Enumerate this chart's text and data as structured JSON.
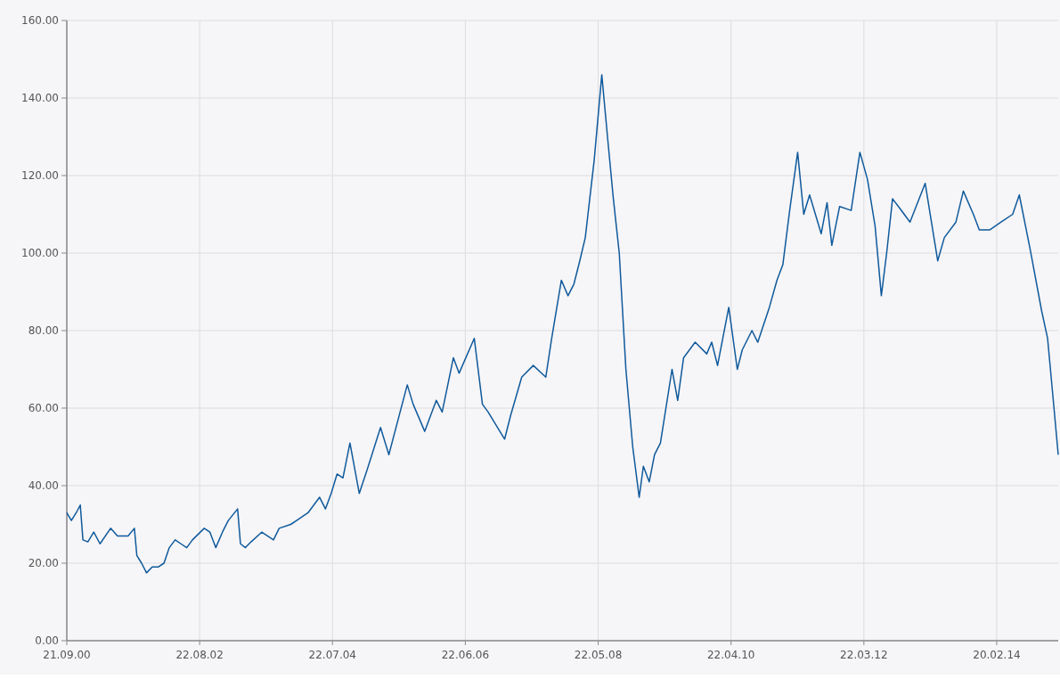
{
  "chart_data": {
    "type": "line",
    "x": [
      "2000-09-21",
      "2000-10-15",
      "2000-11-15",
      "2000-12-01",
      "2000-12-15",
      "2001-01-10",
      "2001-02-10",
      "2001-03-15",
      "2001-05-10",
      "2001-06-15",
      "2001-08-10",
      "2001-09-12",
      "2001-09-25",
      "2001-10-20",
      "2001-11-15",
      "2001-12-15",
      "2002-01-15",
      "2002-02-15",
      "2002-03-15",
      "2002-04-15",
      "2002-05-15",
      "2002-06-15",
      "2002-07-15",
      "2002-09-15",
      "2002-10-15",
      "2002-11-15",
      "2002-12-20",
      "2003-01-20",
      "2003-03-10",
      "2003-03-25",
      "2003-04-20",
      "2003-05-20",
      "2003-07-15",
      "2003-09-15",
      "2003-10-15",
      "2003-12-15",
      "2004-01-15",
      "2004-03-15",
      "2004-05-15",
      "2004-06-15",
      "2004-07-15",
      "2004-08-15",
      "2004-09-15",
      "2004-10-22",
      "2004-12-10",
      "2005-01-20",
      "2005-04-01",
      "2005-05-15",
      "2005-08-20",
      "2005-09-20",
      "2005-11-20",
      "2006-01-20",
      "2006-02-20",
      "2006-04-20",
      "2006-05-20",
      "2006-08-08",
      "2006-09-20",
      "2006-10-20",
      "2007-01-15",
      "2007-02-15",
      "2007-04-15",
      "2007-06-15",
      "2007-08-20",
      "2007-09-20",
      "2007-11-10",
      "2007-12-15",
      "2008-01-15",
      "2008-02-15",
      "2008-03-15",
      "2008-05-01",
      "2008-06-10",
      "2008-07-10",
      "2008-08-10",
      "2008-09-10",
      "2008-10-15",
      "2008-11-20",
      "2008-12-24",
      "2009-01-15",
      "2009-02-15",
      "2009-03-15",
      "2009-04-15",
      "2009-06-15",
      "2009-07-15",
      "2009-08-15",
      "2009-10-15",
      "2009-12-15",
      "2010-01-10",
      "2010-02-10",
      "2010-04-10",
      "2010-05-25",
      "2010-06-20",
      "2010-08-10",
      "2010-09-10",
      "2010-11-10",
      "2010-12-20",
      "2011-01-20",
      "2011-02-25",
      "2011-04-08",
      "2011-05-10",
      "2011-06-10",
      "2011-08-10",
      "2011-09-10",
      "2011-10-05",
      "2011-11-15",
      "2012-01-15",
      "2012-03-01",
      "2012-04-10",
      "2012-05-20",
      "2012-06-22",
      "2012-07-20",
      "2012-08-20",
      "2012-09-20",
      "2012-11-20",
      "2013-02-08",
      "2013-04-15",
      "2013-05-20",
      "2013-07-20",
      "2013-08-28",
      "2013-10-20",
      "2013-11-20",
      "2014-01-15",
      "2014-03-15",
      "2014-05-15",
      "2014-06-19",
      "2014-08-15",
      "2014-10-15",
      "2014-11-15",
      "2014-12-15",
      "2015-01-10"
    ],
    "series": [
      {
        "color": "#0f5a9c",
        "values": [
          33,
          31,
          33.5,
          35,
          26,
          25.5,
          28,
          25,
          29,
          27,
          27,
          29,
          22,
          20,
          17.5,
          19,
          19,
          20,
          24,
          26,
          25,
          24,
          26,
          29,
          28,
          24,
          28,
          31,
          34,
          25,
          24,
          25.5,
          28,
          26,
          29,
          30,
          31,
          33,
          37,
          34,
          38,
          43,
          42,
          51,
          38,
          44,
          55,
          48,
          66,
          61,
          54,
          62,
          59,
          73,
          69,
          78,
          61,
          59,
          52,
          58,
          68,
          71,
          68,
          78,
          93,
          89,
          92,
          98,
          104,
          124,
          146,
          130,
          114,
          100,
          70,
          50,
          37,
          45,
          41,
          48,
          51,
          70,
          62,
          73,
          77,
          74,
          77,
          71,
          86,
          70,
          75,
          80,
          77,
          86,
          93,
          97,
          111,
          126,
          110,
          115,
          105,
          113,
          102,
          112,
          111,
          126,
          119,
          107,
          89,
          100,
          114,
          112,
          108,
          118,
          98,
          104,
          108,
          116,
          110,
          106,
          106,
          108,
          110,
          115,
          101,
          85,
          78,
          62,
          48
        ]
      }
    ],
    "xlim": [
      "2000-09-21",
      "2015-01-10"
    ],
    "xticks": [
      {
        "value": "2000-09-21",
        "label": "21.09.00"
      },
      {
        "value": "2002-08-22",
        "label": "22.08.02"
      },
      {
        "value": "2004-07-22",
        "label": "22.07.04"
      },
      {
        "value": "2006-06-22",
        "label": "22.06.06"
      },
      {
        "value": "2008-05-22",
        "label": "22.05.08"
      },
      {
        "value": "2010-04-22",
        "label": "22.04.10"
      },
      {
        "value": "2012-03-22",
        "label": "22.03.12"
      },
      {
        "value": "2014-02-20",
        "label": "20.02.14"
      }
    ],
    "ylim": [
      0,
      160
    ],
    "yticks": [
      {
        "value": 0,
        "label": "0.00"
      },
      {
        "value": 20,
        "label": "20.00"
      },
      {
        "value": 40,
        "label": "40.00"
      },
      {
        "value": 60,
        "label": "60.00"
      },
      {
        "value": 80,
        "label": "80.00"
      },
      {
        "value": 100,
        "label": "100.00"
      },
      {
        "value": 120,
        "label": "120.00"
      },
      {
        "value": 140,
        "label": "140.00"
      },
      {
        "value": 160,
        "label": "160.00"
      }
    ],
    "grid": true,
    "line_style": "solid"
  }
}
